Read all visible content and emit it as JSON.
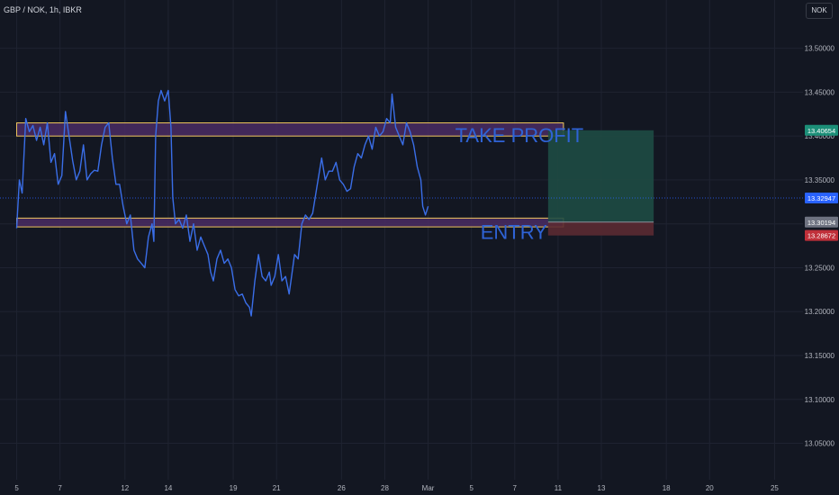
{
  "header": {
    "symbol": "GBP / NOK, 1h, IBKR",
    "currency": "NOK"
  },
  "colors": {
    "background": "#131722",
    "grid": "#1f2331",
    "line": "#3a6ee8",
    "zone_fill": "#4a2b63",
    "zone_border": "#f0c75e",
    "profit_fill": "#1e4b44",
    "loss_fill": "#5b2a32",
    "annotation_text": "#2f63d6",
    "tick_text": "#b2b5be",
    "badge_take_profit": "#1c8f78",
    "badge_last": "#2962ff",
    "badge_entry": "#6f7381",
    "badge_stop": "#c0303a"
  },
  "chart_data": {
    "type": "line",
    "y_ticks": [
      "13.50000",
      "13.45000",
      "13.40000",
      "13.35000",
      "13.30000",
      "13.25000",
      "13.20000",
      "13.15000",
      "13.10000",
      "13.05000"
    ],
    "y_tick_values": [
      13.5,
      13.45,
      13.4,
      13.35,
      13.3,
      13.25,
      13.2,
      13.15,
      13.1,
      13.05
    ],
    "ylim": [
      13.0085,
      13.555
    ],
    "x_ticks": [
      "5",
      "7",
      "12",
      "14",
      "19",
      "21",
      "26",
      "28",
      "Mar",
      "5",
      "7",
      "11",
      "13",
      "18",
      "20",
      "25"
    ],
    "x_tick_bars": [
      0,
      48,
      120,
      168,
      240,
      288,
      360,
      408,
      456,
      504,
      552,
      600,
      648,
      720,
      768,
      840
    ],
    "xlim_bars": [
      -18.5,
      871.5
    ],
    "series": [
      {
        "values": [
          [
            0,
            13.295
          ],
          [
            3,
            13.35
          ],
          [
            6,
            13.335
          ],
          [
            10,
            13.42
          ],
          [
            14,
            13.405
          ],
          [
            18,
            13.412
          ],
          [
            22,
            13.395
          ],
          [
            26,
            13.41
          ],
          [
            30,
            13.39
          ],
          [
            34,
            13.415
          ],
          [
            38,
            13.37
          ],
          [
            42,
            13.38
          ],
          [
            46,
            13.345
          ],
          [
            50,
            13.355
          ],
          [
            54,
            13.428
          ],
          [
            58,
            13.4
          ],
          [
            62,
            13.372
          ],
          [
            66,
            13.35
          ],
          [
            70,
            13.36
          ],
          [
            74,
            13.39
          ],
          [
            78,
            13.35
          ],
          [
            82,
            13.357
          ],
          [
            86,
            13.361
          ],
          [
            90,
            13.36
          ],
          [
            94,
            13.39
          ],
          [
            98,
            13.41
          ],
          [
            102,
            13.415
          ],
          [
            106,
            13.375
          ],
          [
            110,
            13.345
          ],
          [
            114,
            13.345
          ],
          [
            118,
            13.32
          ],
          [
            122,
            13.3
          ],
          [
            126,
            13.31
          ],
          [
            130,
            13.27
          ],
          [
            134,
            13.26
          ],
          [
            138,
            13.255
          ],
          [
            142,
            13.25
          ],
          [
            146,
            13.285
          ],
          [
            150,
            13.3
          ],
          [
            152,
            13.28
          ],
          [
            154,
            13.4
          ],
          [
            157,
            13.44
          ],
          [
            160,
            13.452
          ],
          [
            164,
            13.44
          ],
          [
            168,
            13.452
          ],
          [
            171,
            13.41
          ],
          [
            173,
            13.33
          ],
          [
            176,
            13.3
          ],
          [
            180,
            13.305
          ],
          [
            184,
            13.295
          ],
          [
            188,
            13.31
          ],
          [
            192,
            13.28
          ],
          [
            196,
            13.3
          ],
          [
            200,
            13.27
          ],
          [
            204,
            13.285
          ],
          [
            208,
            13.275
          ],
          [
            212,
            13.265
          ],
          [
            215,
            13.245
          ],
          [
            218,
            13.235
          ],
          [
            222,
            13.26
          ],
          [
            226,
            13.27
          ],
          [
            230,
            13.255
          ],
          [
            234,
            13.26
          ],
          [
            238,
            13.25
          ],
          [
            242,
            13.225
          ],
          [
            246,
            13.218
          ],
          [
            250,
            13.22
          ],
          [
            254,
            13.21
          ],
          [
            258,
            13.205
          ],
          [
            260,
            13.195
          ],
          [
            264,
            13.235
          ],
          [
            268,
            13.265
          ],
          [
            272,
            13.24
          ],
          [
            276,
            13.235
          ],
          [
            280,
            13.245
          ],
          [
            282,
            13.23
          ],
          [
            286,
            13.24
          ],
          [
            290,
            13.265
          ],
          [
            294,
            13.235
          ],
          [
            298,
            13.24
          ],
          [
            302,
            13.22
          ],
          [
            304,
            13.235
          ],
          [
            308,
            13.265
          ],
          [
            312,
            13.26
          ],
          [
            316,
            13.3
          ],
          [
            320,
            13.31
          ],
          [
            324,
            13.305
          ],
          [
            328,
            13.312
          ],
          [
            334,
            13.35
          ],
          [
            338,
            13.375
          ],
          [
            342,
            13.35
          ],
          [
            346,
            13.36
          ],
          [
            350,
            13.36
          ],
          [
            354,
            13.37
          ],
          [
            358,
            13.35
          ],
          [
            362,
            13.345
          ],
          [
            366,
            13.337
          ],
          [
            370,
            13.34
          ],
          [
            374,
            13.365
          ],
          [
            378,
            13.38
          ],
          [
            382,
            13.375
          ],
          [
            386,
            13.39
          ],
          [
            390,
            13.4
          ],
          [
            394,
            13.385
          ],
          [
            398,
            13.41
          ],
          [
            402,
            13.4
          ],
          [
            406,
            13.405
          ],
          [
            410,
            13.42
          ],
          [
            414,
            13.415
          ],
          [
            416,
            13.448
          ],
          [
            420,
            13.41
          ],
          [
            424,
            13.4
          ],
          [
            428,
            13.39
          ],
          [
            432,
            13.415
          ],
          [
            436,
            13.405
          ],
          [
            440,
            13.39
          ],
          [
            444,
            13.365
          ],
          [
            448,
            13.35
          ],
          [
            450,
            13.32
          ],
          [
            453,
            13.31
          ],
          [
            456,
            13.32
          ]
        ]
      }
    ],
    "zones": [
      {
        "name": "take-profit-zone",
        "x_start": 0,
        "x_end": 606,
        "y_top": 13.415,
        "y_bottom": 13.4
      },
      {
        "name": "entry-zone",
        "x_start": 0,
        "x_end": 606,
        "y_top": 13.3065,
        "y_bottom": 13.2965
      }
    ],
    "position": {
      "x_start": 589,
      "x_end": 706,
      "entry": 13.30194,
      "target": 13.40654,
      "stop": 13.28672
    },
    "annotations": [
      {
        "text": "TAKE PROFIT",
        "x": 486,
        "y": 13.393
      },
      {
        "text": "ENTRY",
        "x": 514,
        "y": 13.283
      }
    ],
    "price_badges": [
      {
        "label": "13.40654",
        "value": 13.40654,
        "color_key": "badge_take_profit",
        "text_color": "#ffffff"
      },
      {
        "label": "13.32947",
        "value": 13.32947,
        "color_key": "badge_last",
        "text_color": "#ffffff"
      },
      {
        "label": "13.30194",
        "value": 13.30194,
        "color_key": "badge_entry",
        "text_color": "#ffffff"
      },
      {
        "label": "13.28672",
        "value": 13.28672,
        "color_key": "badge_stop",
        "text_color": "#ffffff"
      }
    ],
    "last_price": 13.32947,
    "grid": true
  }
}
